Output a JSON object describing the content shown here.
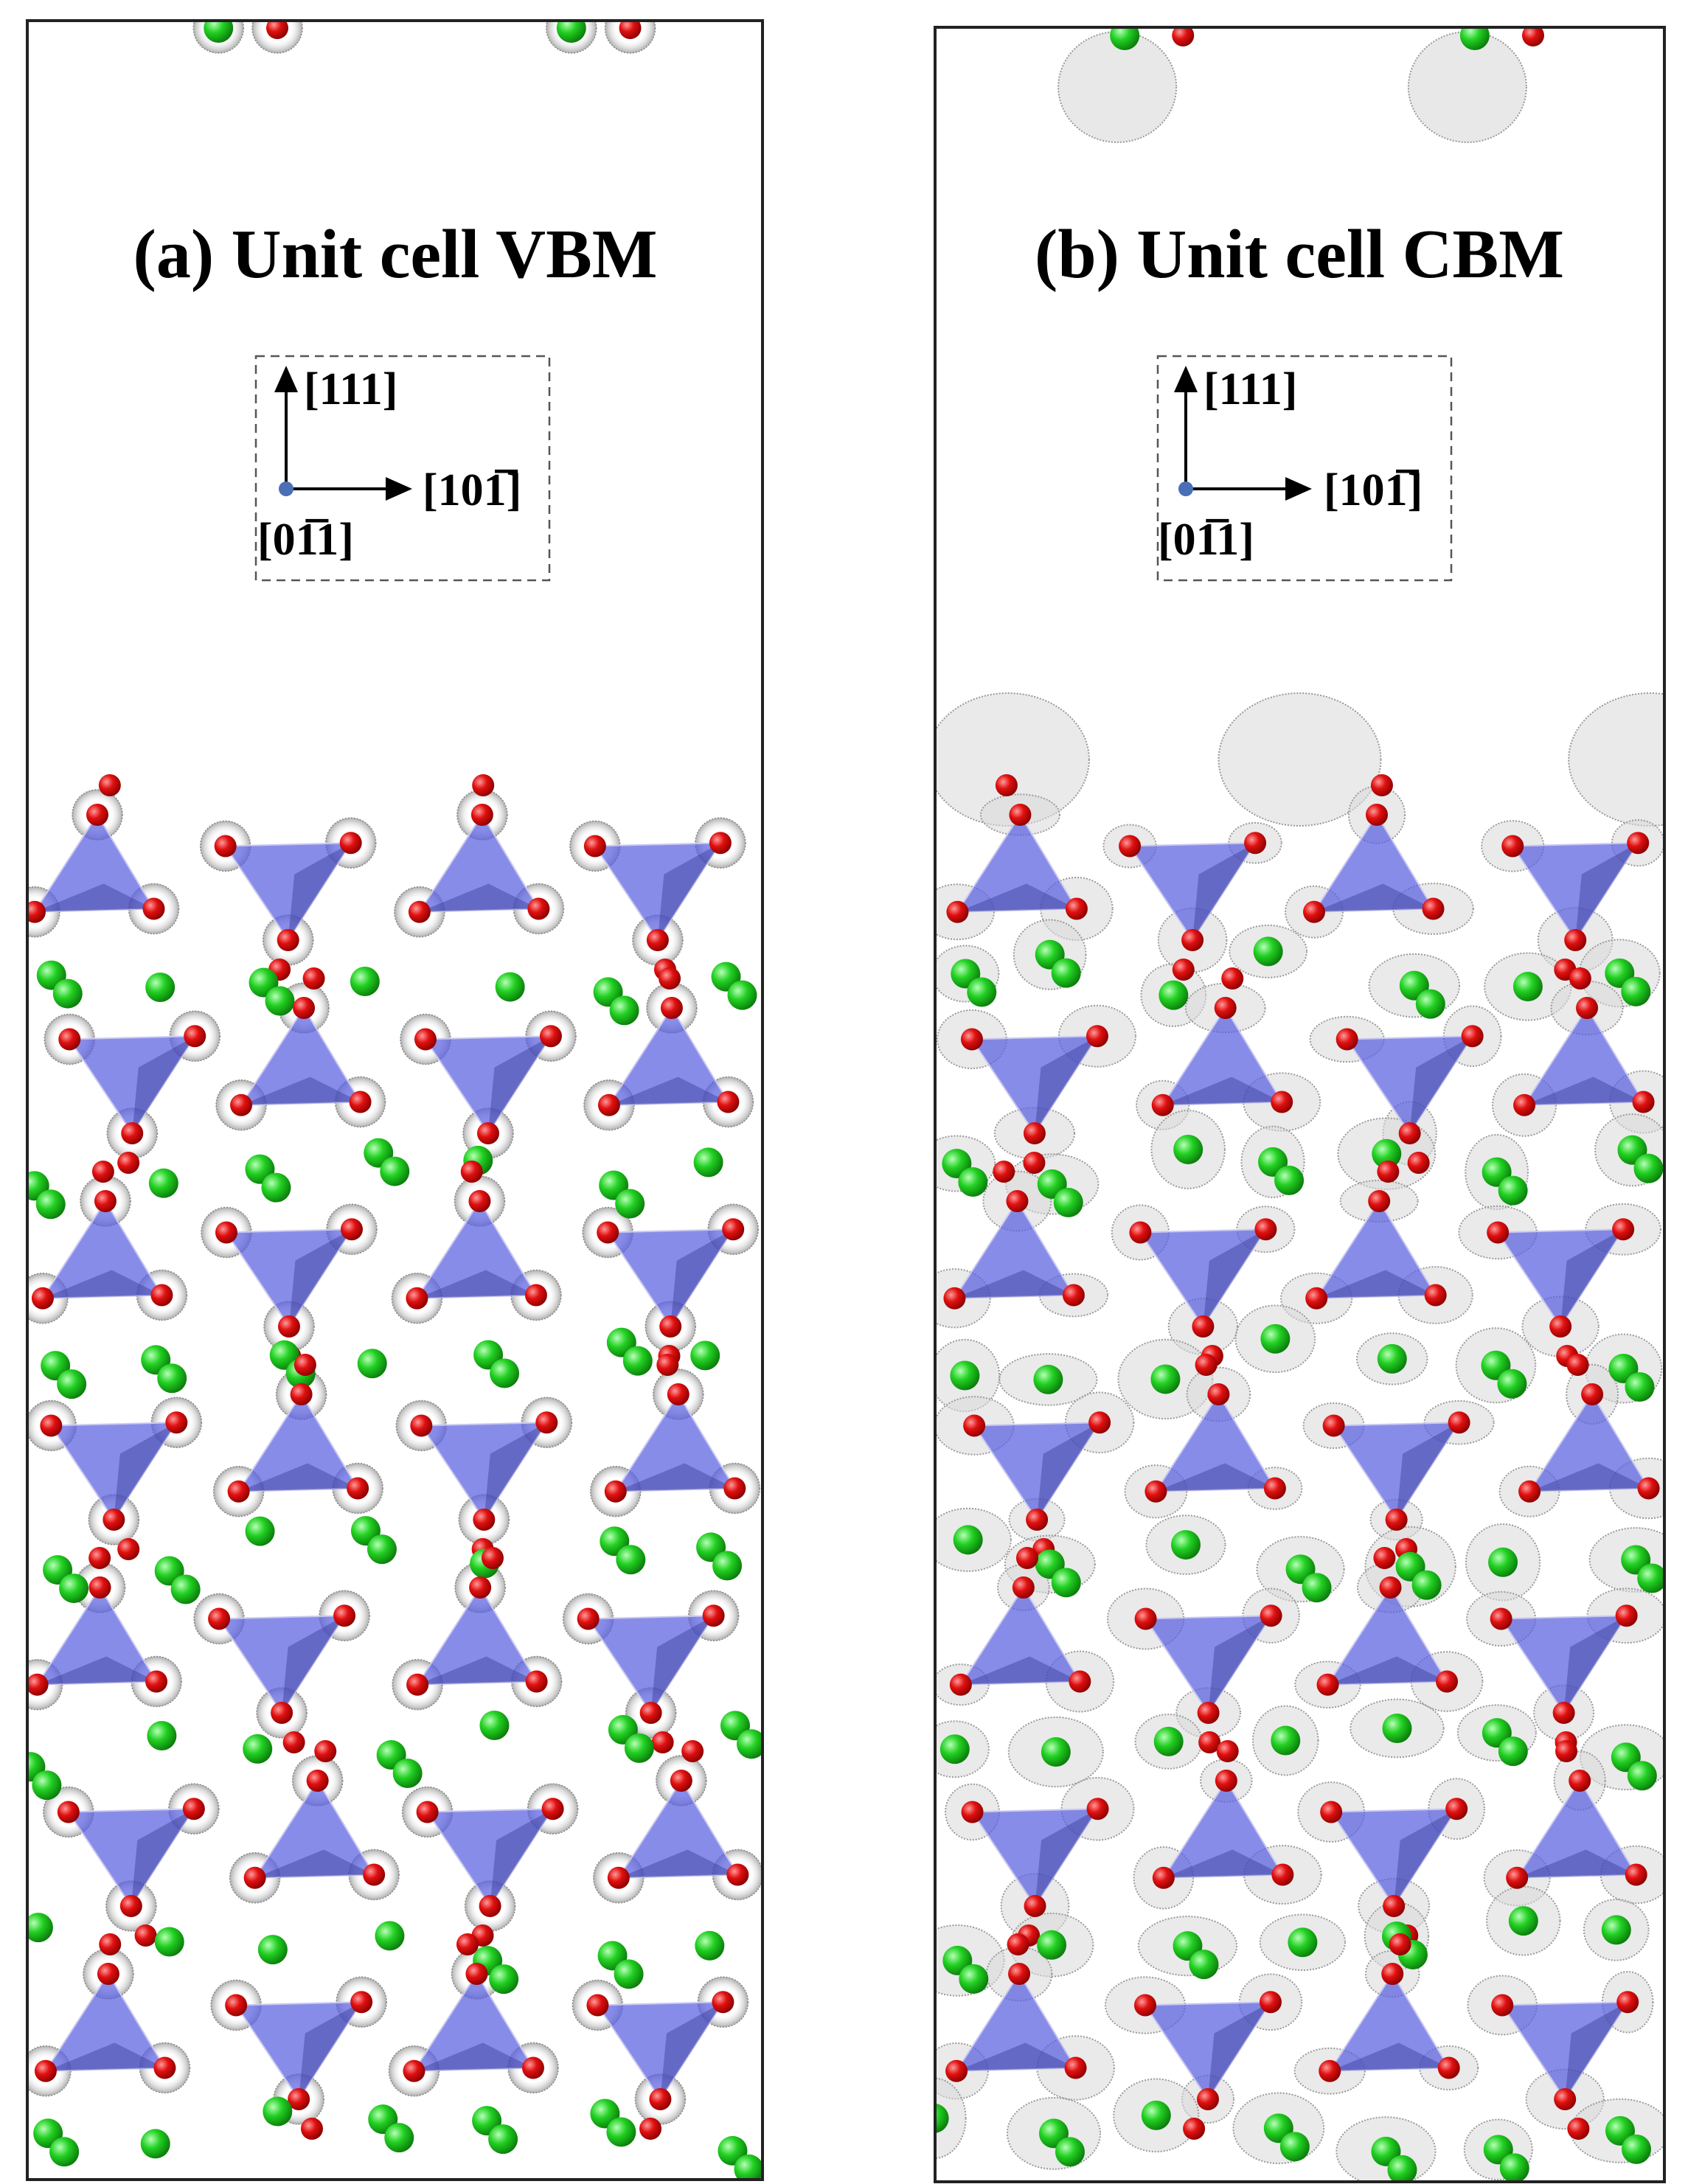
{
  "panels": [
    {
      "title": "(a) Unit cell VBM",
      "axes": {
        "up": "[111]",
        "right": "[101̅]",
        "out": "[01̅1]"
      }
    },
    {
      "title": "(b) Unit cell CBM",
      "axes": {
        "up": "[111]",
        "right": "[101̅]",
        "out": "[01̅1]"
      }
    }
  ]
}
